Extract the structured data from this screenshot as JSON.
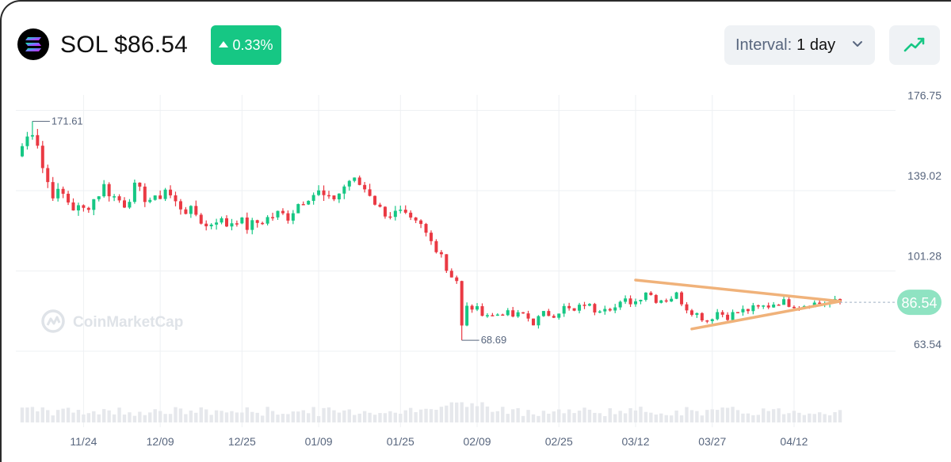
{
  "header": {
    "symbol": "SOL",
    "price": "$86.54",
    "change": "0.33%",
    "interval_label": "Interval:",
    "interval_value": "1 day"
  },
  "watermark": "CoinMarketCap",
  "colors": {
    "up": "#16c784",
    "down": "#ea3943",
    "trendline": "#f0b27a",
    "badge": "#16c784",
    "price_tag": "#8fe3c2"
  },
  "icons": [
    "solana-logo-icon",
    "triangle-up-icon",
    "chevron-down-icon",
    "line-chart-icon",
    "coinmarketcap-logo-icon"
  ],
  "chart_data": {
    "type": "candlestick",
    "y_ticks": [
      "176.75",
      "139.02",
      "101.28",
      "63.54"
    ],
    "y_tick_values": [
      176.75,
      139.02,
      101.28,
      63.54
    ],
    "ylim": [
      52.0,
      184.0
    ],
    "x_ticks": [
      "11/24",
      "12/09",
      "12/25",
      "01/09",
      "01/25",
      "02/09",
      "02/25",
      "03/12",
      "03/27",
      "04/12"
    ],
    "x_tick_index": [
      12,
      27,
      43,
      58,
      74,
      89,
      105,
      120,
      135,
      151
    ],
    "num_candles": 169,
    "current_price": "86.54",
    "current_price_value": 86.54,
    "high_label": "171.61",
    "high_value": 171.61,
    "high_index": 2,
    "low_label": "68.69",
    "low_value": 68.69,
    "low_index": 86,
    "anchors": [
      [
        0,
        160
      ],
      [
        1,
        164
      ],
      [
        2,
        168
      ],
      [
        3,
        162
      ],
      [
        4,
        150
      ],
      [
        5,
        143
      ],
      [
        6,
        138
      ],
      [
        8,
        137
      ],
      [
        10,
        131
      ],
      [
        12,
        130
      ],
      [
        14,
        135
      ],
      [
        16,
        141
      ],
      [
        18,
        136
      ],
      [
        20,
        133
      ],
      [
        22,
        140
      ],
      [
        24,
        136
      ],
      [
        26,
        134
      ],
      [
        28,
        140
      ],
      [
        30,
        133
      ],
      [
        32,
        130
      ],
      [
        34,
        128
      ],
      [
        36,
        122
      ],
      [
        38,
        126
      ],
      [
        40,
        123
      ],
      [
        42,
        126
      ],
      [
        44,
        122
      ],
      [
        46,
        124
      ],
      [
        48,
        126
      ],
      [
        50,
        128
      ],
      [
        52,
        127
      ],
      [
        54,
        133
      ],
      [
        56,
        137
      ],
      [
        58,
        138
      ],
      [
        60,
        134
      ],
      [
        62,
        138
      ],
      [
        64,
        144
      ],
      [
        66,
        142
      ],
      [
        68,
        138
      ],
      [
        70,
        130
      ],
      [
        72,
        128
      ],
      [
        74,
        128
      ],
      [
        76,
        124
      ],
      [
        78,
        122
      ],
      [
        80,
        115
      ],
      [
        82,
        110
      ],
      [
        83,
        102
      ],
      [
        85,
        97
      ],
      [
        86,
        75
      ],
      [
        87,
        84
      ],
      [
        88,
        84
      ],
      [
        90,
        82
      ],
      [
        92,
        80
      ],
      [
        94,
        82
      ],
      [
        96,
        80
      ],
      [
        98,
        81
      ],
      [
        100,
        77
      ],
      [
        102,
        81
      ],
      [
        104,
        81
      ],
      [
        106,
        84
      ],
      [
        108,
        82
      ],
      [
        110,
        86
      ],
      [
        112,
        83
      ],
      [
        114,
        85
      ],
      [
        116,
        84
      ],
      [
        118,
        87
      ],
      [
        120,
        87
      ],
      [
        122,
        92
      ],
      [
        124,
        88
      ],
      [
        126,
        88
      ],
      [
        128,
        90
      ],
      [
        130,
        84
      ],
      [
        132,
        81
      ],
      [
        134,
        78
      ],
      [
        136,
        82
      ],
      [
        138,
        80
      ],
      [
        140,
        82
      ],
      [
        142,
        83
      ],
      [
        144,
        84
      ],
      [
        146,
        85
      ],
      [
        148,
        87
      ],
      [
        150,
        86
      ],
      [
        152,
        85
      ],
      [
        154,
        86
      ],
      [
        156,
        86
      ],
      [
        158,
        86.5
      ],
      [
        160,
        86.54
      ]
    ],
    "trendlines": [
      {
        "name": "upper",
        "from": [
          120,
          97
        ],
        "to": [
          160,
          87
        ]
      },
      {
        "name": "lower",
        "from": [
          131,
          74
        ],
        "to": [
          160,
          87
        ]
      }
    ]
  }
}
